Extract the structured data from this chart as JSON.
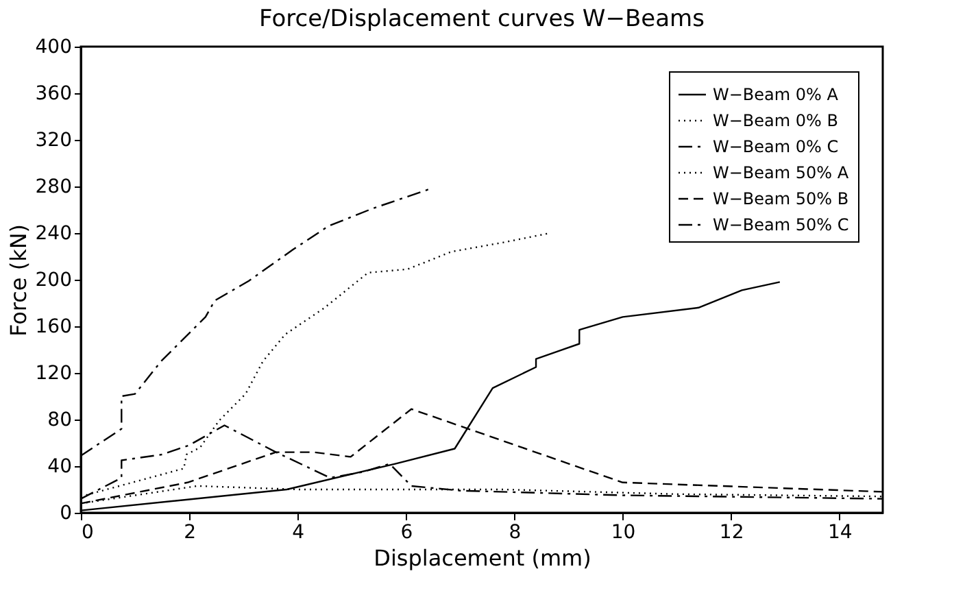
{
  "chart_data": {
    "type": "line",
    "title": "Force/Displacement curves W−Beams",
    "xlabel": "Displacement (mm)",
    "ylabel": "Force (kN)",
    "xlim": [
      0,
      14.8
    ],
    "xticks": [
      0,
      2,
      4,
      6,
      8,
      10,
      12,
      14
    ],
    "ylim": [
      0,
      400
    ],
    "yticks": [
      0,
      40,
      80,
      120,
      160,
      200,
      240,
      280,
      320,
      360,
      400
    ],
    "grid": false,
    "legend": "top right",
    "marker": "none",
    "series": [
      {
        "name": "W−Beam 0% A",
        "color": "#000000",
        "line_style": "solid",
        "x": [
          0,
          3.8,
          5.8,
          6.9,
          7.6,
          8.4,
          8.4,
          9.2,
          9.2,
          10,
          11.4,
          12.2,
          12.9
        ],
        "values": [
          2,
          20,
          42,
          55,
          107,
          125,
          132,
          145,
          157,
          168,
          176,
          191,
          198
        ]
      },
      {
        "name": "W−Beam 0% B",
        "color": "#000000",
        "line_style": "dotted",
        "x": [
          0,
          1.9,
          1.95,
          2.2,
          2.55,
          3.04,
          3.36,
          3.77,
          4.5,
          5.3,
          6.03,
          6.84,
          7.8,
          8.66
        ],
        "values": [
          14,
          38,
          50,
          56,
          79,
          102,
          130,
          153,
          176,
          206,
          209,
          224,
          232,
          240
        ]
      },
      {
        "name": "W−Beam 0% C",
        "color": "#000000",
        "line_style": "dashdot",
        "x": [
          0,
          0.75,
          0.75,
          1.0,
          1.48,
          2.3,
          2.47,
          3.1,
          3.92,
          4.57,
          5.38,
          6.45
        ],
        "values": [
          49,
          72,
          100,
          102,
          130,
          168,
          182,
          199,
          226,
          246,
          261,
          278
        ]
      },
      {
        "name": "W−Beam 50% A",
        "color": "#000000",
        "line_style": "dotted",
        "x": [
          0,
          2.15,
          4,
          7.8,
          11,
          14.8
        ],
        "values": [
          8,
          23,
          20,
          20,
          16,
          14
        ]
      },
      {
        "name": "W−Beam 50% B",
        "color": "#000000",
        "line_style": "dashed",
        "x": [
          0,
          1.97,
          3.6,
          4.3,
          4.98,
          6.1,
          10,
          14.8
        ],
        "values": [
          8,
          26,
          52,
          52,
          48,
          89,
          26,
          18
        ]
      },
      {
        "name": "W−Beam 50% C",
        "color": "#000000",
        "line_style": "dashdot",
        "x": [
          0,
          0.75,
          0.75,
          1.5,
          2.0,
          2.65,
          3.6,
          4.6,
          5.2,
          5.7,
          6.1,
          7.0,
          10,
          14.8
        ],
        "values": [
          12,
          30,
          45,
          50,
          58,
          75,
          52,
          30,
          35,
          42,
          23,
          19,
          15,
          12
        ]
      }
    ]
  }
}
